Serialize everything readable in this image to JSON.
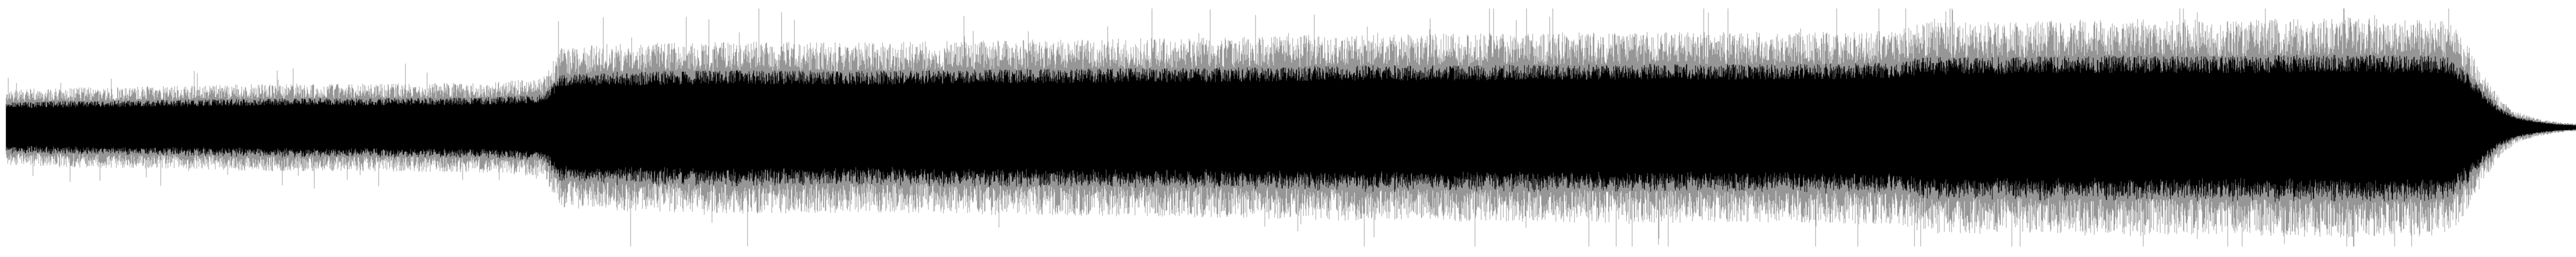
{
  "waveform": {
    "wave_color": "#000000",
    "background_color": "#ffffff",
    "envelope": {
      "t": [
        0.0,
        0.02,
        0.06,
        0.1,
        0.14,
        0.18,
        0.205,
        0.212,
        0.23,
        0.28,
        0.33,
        0.38,
        0.42,
        0.46,
        0.5,
        0.56,
        0.62,
        0.68,
        0.718,
        0.725,
        0.76,
        0.8,
        0.84,
        0.88,
        0.915,
        0.925,
        0.932,
        0.938,
        0.944,
        0.95,
        0.958,
        0.966,
        0.975,
        0.985,
        1.0
      ],
      "amp": [
        0.28,
        0.3,
        0.31,
        0.33,
        0.33,
        0.34,
        0.37,
        0.6,
        0.63,
        0.65,
        0.64,
        0.66,
        0.67,
        0.68,
        0.7,
        0.71,
        0.72,
        0.72,
        0.74,
        0.8,
        0.8,
        0.82,
        0.81,
        0.83,
        0.82,
        0.8,
        0.62,
        0.4,
        0.22,
        0.12,
        0.07,
        0.04,
        0.025,
        0.012,
        0.008
      ]
    },
    "peak_max": 0.985,
    "end_fraction": 0.997
  }
}
